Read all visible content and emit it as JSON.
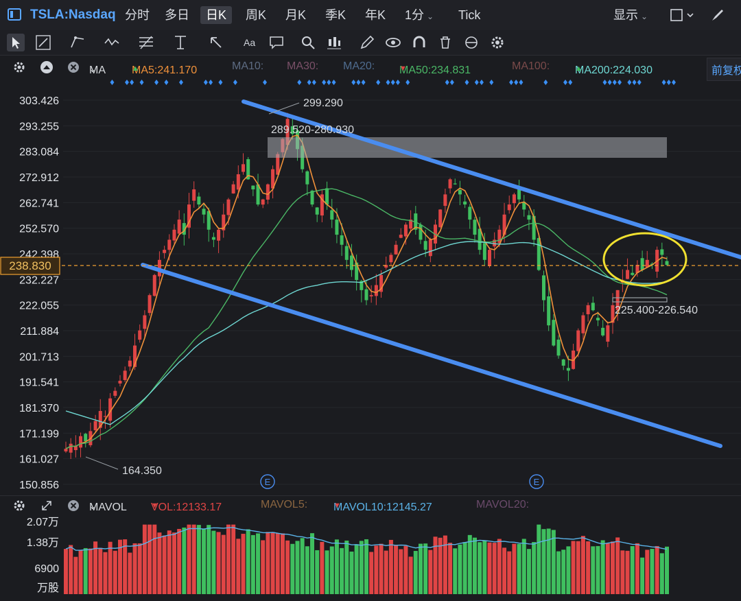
{
  "toolbar": {
    "ticker": "TSLA:Nasdaq",
    "timeframes": [
      "分时",
      "多日",
      "日K",
      "周K",
      "月K",
      "季K",
      "年K",
      "1分",
      "Tick"
    ],
    "active_timeframe": "日K",
    "display_label": "显示"
  },
  "legend": {
    "indicator": "MA",
    "ma5": "MA5:241.170",
    "ma10": "MA10:",
    "ma30": "MA30:",
    "ma20": "MA20:",
    "ma50": "MA50:234.831",
    "ma100": "MA100:",
    "ma200": "MA200:224.030",
    "adjust": "前复权"
  },
  "colors": {
    "up": "#e04545",
    "down": "#3fbf5f",
    "ma5": "#f0913a",
    "ma50": "#4bb866",
    "ma200": "#6fd8d3",
    "channel": "#4a8df0",
    "price_line": "#f0a030",
    "highlight": "#f0e030"
  },
  "chart_data": {
    "type": "candlestick",
    "y_ticks": [
      "303.426",
      "293.255",
      "283.084",
      "272.912",
      "262.741",
      "252.570",
      "242.398",
      "232.227",
      "222.055",
      "211.884",
      "201.713",
      "191.541",
      "181.370",
      "171.199",
      "161.027",
      "150.856"
    ],
    "ylim": [
      150.856,
      303.426
    ],
    "current_price": "238.830",
    "annotations": {
      "high": "299.290",
      "low": "164.350",
      "resistance_zone": "289.520-280.930",
      "support_zone": "225.400-226.540",
      "earnings_marker": "E"
    },
    "closes": [
      165,
      167,
      166,
      170,
      168,
      172,
      176,
      180,
      178,
      185,
      188,
      192,
      196,
      200,
      206,
      212,
      218,
      226,
      234,
      240,
      244,
      248,
      252,
      256,
      250,
      262,
      268,
      262,
      258,
      252,
      248,
      252,
      258,
      264,
      270,
      274,
      278,
      272,
      268,
      262,
      264,
      270,
      276,
      282,
      288,
      296,
      290,
      284,
      276,
      270,
      262,
      258,
      266,
      262,
      256,
      250,
      246,
      240,
      236,
      232,
      228,
      224,
      226,
      230,
      234,
      238,
      242,
      246,
      250,
      254,
      256,
      252,
      248,
      244,
      248,
      254,
      260,
      266,
      272,
      270,
      266,
      262,
      256,
      250,
      244,
      240,
      244,
      248,
      252,
      258,
      262,
      266,
      264,
      260,
      256,
      248,
      236,
      224,
      214,
      206,
      202,
      198,
      196,
      204,
      212,
      218,
      222,
      220,
      216,
      210,
      214,
      222,
      228,
      232,
      236,
      234,
      238,
      236,
      240,
      238,
      244,
      242,
      238
    ]
  },
  "volume": {
    "indicator": "MAVOL",
    "vol": "VOL:12133.17",
    "mavol5": "MAVOL5:",
    "mavol10": "MAVOL10:12145.27",
    "mavol20": "MAVOL20:",
    "y_ticks": [
      "2.07万",
      "1.38万",
      "6900",
      "万股"
    ],
    "ylim": [
      0,
      20700
    ]
  }
}
